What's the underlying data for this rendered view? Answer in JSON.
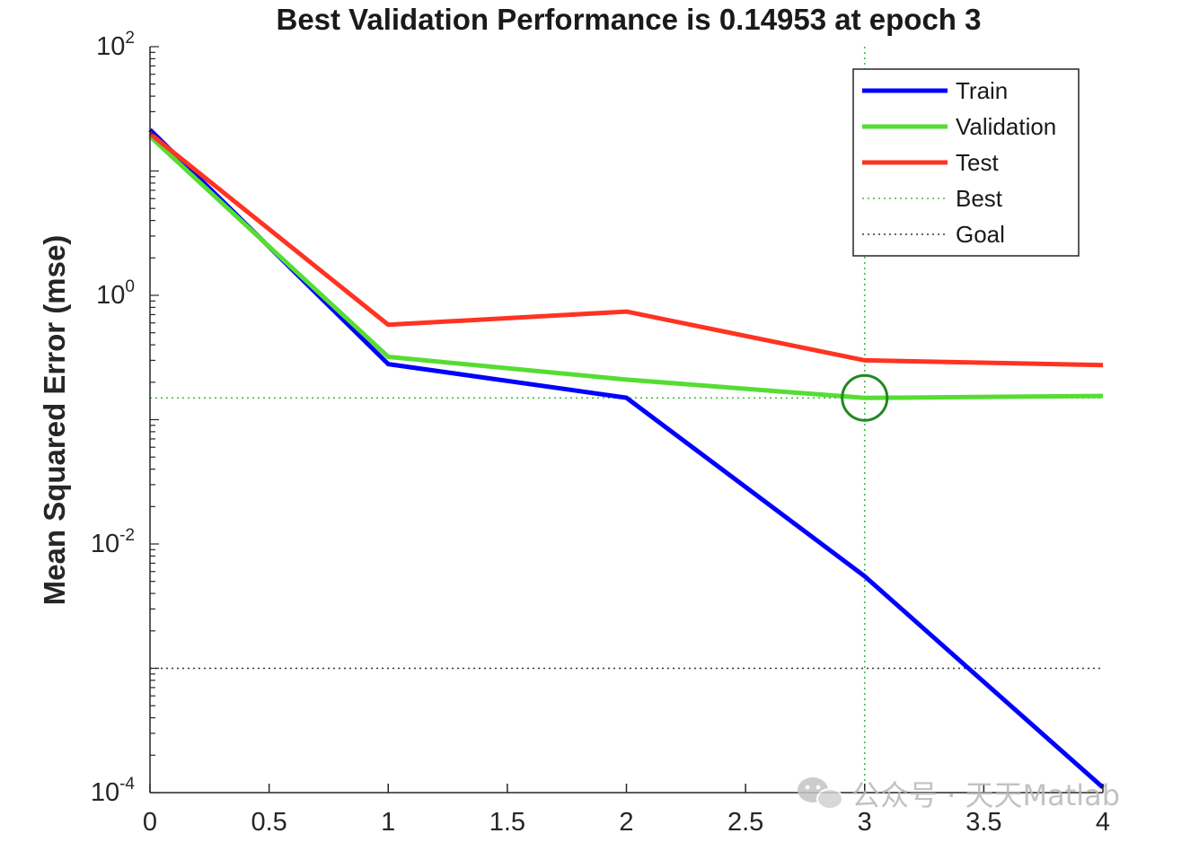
{
  "chart_data": {
    "type": "line",
    "title": "Best Validation Performance is 0.14953 at epoch 3",
    "ylabel": "Mean Squared Error  (mse)",
    "xlabel": "",
    "yscale": "log",
    "xlim": [
      0,
      4
    ],
    "ylim_log10": [
      -4,
      2
    ],
    "x_ticks": [
      0,
      0.5,
      1,
      1.5,
      2,
      2.5,
      3,
      3.5,
      4
    ],
    "x_tick_labels": [
      "0",
      "0.5",
      "1",
      "1.5",
      "2",
      "2.5",
      "3",
      "3.5",
      "4"
    ],
    "y_ticks": [
      {
        "exp": 2,
        "base": "10",
        "sup": "2"
      },
      {
        "exp": 0,
        "base": "10",
        "sup": "0"
      },
      {
        "exp": -2,
        "base": "10",
        "sup": "-2"
      },
      {
        "exp": -4,
        "base": "10",
        "sup": "-4"
      }
    ],
    "x": [
      0,
      1,
      2,
      3,
      4
    ],
    "series": [
      {
        "name": "Train",
        "color": "#0000ff",
        "values": [
          21.5,
          0.28,
          0.15,
          0.0055,
          0.00011
        ]
      },
      {
        "name": "Validation",
        "color": "#55dd33",
        "values": [
          19.0,
          0.32,
          0.21,
          0.1495,
          0.155
        ]
      },
      {
        "name": "Test",
        "color": "#ff3322",
        "values": [
          20.0,
          0.58,
          0.74,
          0.3,
          0.275
        ]
      }
    ],
    "best": {
      "name": "Best",
      "epoch": 3,
      "value": 0.14953,
      "color": "#44bb44",
      "marker_color": "#228822"
    },
    "goal": {
      "name": "Goal",
      "value": 0.001,
      "color": "#333333"
    },
    "legend_position": "top-right"
  },
  "watermark": {
    "text": "公众号 · 天天Matlab",
    "color": "#bbbbbb",
    "icon": "wechat-icon"
  }
}
